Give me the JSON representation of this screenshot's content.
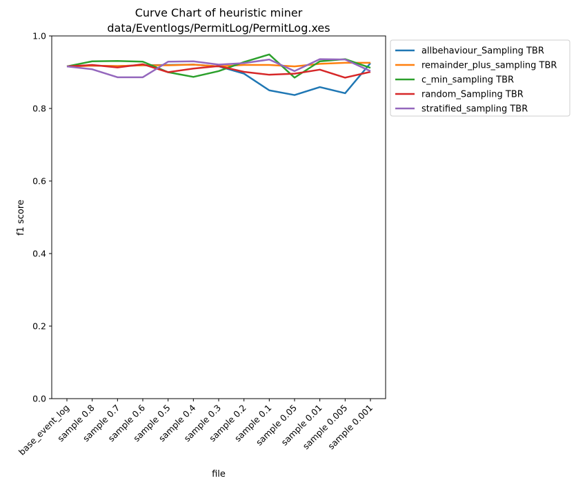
{
  "chart_data": {
    "type": "line",
    "title": "Curve Chart of heuristic miner",
    "subtitle": "data/Eventlogs/PermitLog/PermitLog.xes",
    "xlabel": "file",
    "ylabel": "f1 score",
    "ylim": [
      0.0,
      1.0
    ],
    "yticks": [
      "0.0",
      "0.2",
      "0.4",
      "0.6",
      "0.8",
      "1.0"
    ],
    "grid": false,
    "legend_position": "outside-upper-right",
    "categories": [
      "base_event_log",
      "sample 0.8",
      "sample 0.7",
      "sample 0.6",
      "sample 0.5",
      "sample 0.4",
      "sample 0.3",
      "sample 0.2",
      "sample 0.1",
      "sample 0.05",
      "sample 0.01",
      "sample 0.005",
      "sample 0.001"
    ],
    "series": [
      {
        "name": "allbehaviour_Sampling TBR",
        "color": "#1f77b4",
        "values": [
          0.916,
          0.918,
          0.917,
          0.919,
          0.92,
          0.921,
          0.916,
          0.896,
          0.85,
          0.837,
          0.859,
          0.842,
          0.925
        ]
      },
      {
        "name": "remainder_plus_sampling TBR",
        "color": "#ff7f0e",
        "values": [
          0.916,
          0.918,
          0.917,
          0.919,
          0.919,
          0.921,
          0.916,
          0.92,
          0.92,
          0.916,
          0.923,
          0.926,
          0.926
        ]
      },
      {
        "name": "c_min_sampling TBR",
        "color": "#2ca02c",
        "values": [
          0.916,
          0.93,
          0.931,
          0.929,
          0.9,
          0.887,
          0.903,
          0.928,
          0.949,
          0.885,
          0.93,
          0.936,
          0.912
        ]
      },
      {
        "name": "random_Sampling TBR",
        "color": "#d62728",
        "values": [
          0.916,
          0.92,
          0.913,
          0.922,
          0.9,
          0.91,
          0.917,
          0.901,
          0.893,
          0.896,
          0.907,
          0.885,
          0.901
        ]
      },
      {
        "name": "stratified_sampling TBR",
        "color": "#9467bd",
        "values": [
          0.916,
          0.908,
          0.886,
          0.886,
          0.929,
          0.93,
          0.921,
          0.925,
          0.935,
          0.903,
          0.936,
          0.935,
          0.903
        ]
      }
    ]
  }
}
